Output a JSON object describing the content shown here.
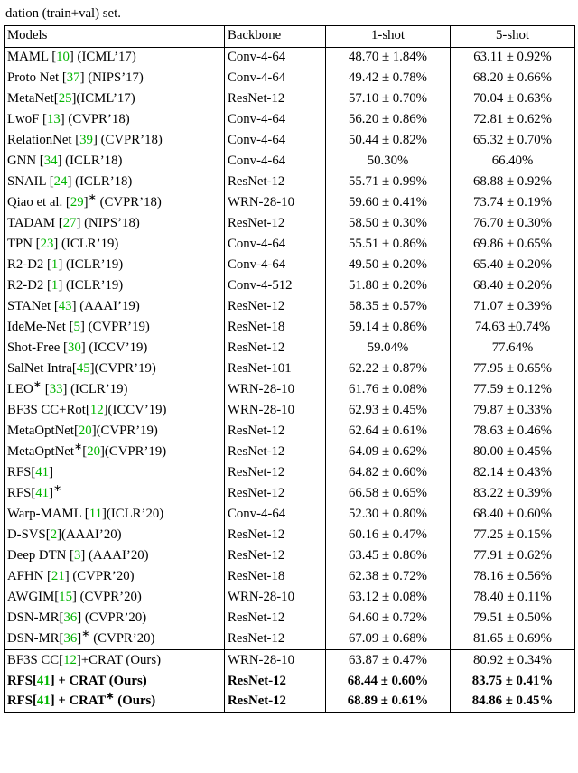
{
  "caption": "dation (train+val) set.",
  "headers": {
    "c1": "Models",
    "c2": "Backbone",
    "c3": "1-shot",
    "c4": "5-shot"
  },
  "ref_color": "#00b400",
  "rows": [
    {
      "model_pre": "MAML [",
      "ref": "10",
      "model_post": "] (ICML’17)",
      "backbone": "Conv-4-64",
      "s1": "48.70 ± 1.84%",
      "s5": "63.11 ± 0.92%"
    },
    {
      "model_pre": "Proto Net [",
      "ref": "37",
      "model_post": "] (NIPS’17)",
      "backbone": "Conv-4-64",
      "s1": "49.42 ± 0.78%",
      "s5": "68.20 ± 0.66%"
    },
    {
      "model_pre": "MetaNet[",
      "ref": "25",
      "model_post": "](ICML’17)",
      "backbone": "ResNet-12",
      "s1": "57.10 ± 0.70%",
      "s5": "70.04 ± 0.63%"
    },
    {
      "model_pre": "LwoF [",
      "ref": "13",
      "model_post": "] (CVPR’18)",
      "backbone": "Conv-4-64",
      "s1": "56.20 ± 0.86%",
      "s5": "72.81 ± 0.62%"
    },
    {
      "model_pre": "RelationNet [",
      "ref": "39",
      "model_post": "] (CVPR’18)",
      "backbone": "Conv-4-64",
      "s1": "50.44 ± 0.82%",
      "s5": "65.32 ± 0.70%"
    },
    {
      "model_pre": "GNN [",
      "ref": "34",
      "model_post": "] (ICLR’18)",
      "backbone": "Conv-4-64",
      "s1": "50.30%",
      "s5": "66.40%"
    },
    {
      "model_pre": "SNAIL [",
      "ref": "24",
      "model_post": "] (ICLR’18)",
      "backbone": "ResNet-12",
      "s1": "55.71 ± 0.99%",
      "s5": "68.88 ± 0.92%"
    },
    {
      "model_pre": "Qiao et al. [",
      "ref": "29",
      "model_post": "]",
      "suffix": " (CVPR’18)",
      "star": true,
      "backbone": "WRN-28-10",
      "s1": "59.60 ± 0.41%",
      "s5": "73.74 ± 0.19%"
    },
    {
      "model_pre": "TADAM [",
      "ref": "27",
      "model_post": "] (NIPS’18)",
      "backbone": "ResNet-12",
      "s1": "58.50 ± 0.30%",
      "s5": "76.70 ± 0.30%"
    },
    {
      "model_pre": "TPN [",
      "ref": "23",
      "model_post": "] (ICLR’19)",
      "backbone": "Conv-4-64",
      "s1": "55.51 ± 0.86%",
      "s5": "69.86 ± 0.65%"
    },
    {
      "model_pre": "R2-D2 [",
      "ref": "1",
      "model_post": "] (ICLR’19)",
      "backbone": "Conv-4-64",
      "s1": "49.50 ± 0.20%",
      "s5": "65.40 ± 0.20%"
    },
    {
      "model_pre": "R2-D2 [",
      "ref": "1",
      "model_post": "] (ICLR’19)",
      "backbone": "Conv-4-512",
      "s1": "51.80 ± 0.20%",
      "s5": "68.40 ± 0.20%"
    },
    {
      "model_pre": "STANet [",
      "ref": "43",
      "model_post": "] (AAAI’19)",
      "backbone": "ResNet-12",
      "s1": "58.35 ± 0.57%",
      "s5": "71.07 ± 0.39%"
    },
    {
      "model_pre": "IdeMe-Net [",
      "ref": "5",
      "model_post": "] (CVPR’19)",
      "backbone": "ResNet-18",
      "s1": "59.14 ± 0.86%",
      "s5": " 74.63 ±0.74%"
    },
    {
      "model_pre": "Shot-Free [",
      "ref": "30",
      "model_post": "] (ICCV’19)",
      "backbone": "ResNet-12",
      "s1": "59.04%",
      "s5": "77.64%"
    },
    {
      "model_pre": "SalNet Intra[",
      "ref": "45",
      "model_post": "](CVPR’19)",
      "backbone": "ResNet-101",
      "s1": "62.22 ± 0.87%",
      "s5": "77.95 ± 0.65%"
    },
    {
      "model_pre": "LEO",
      "ref": "33",
      "model_post": "] (ICLR’19)",
      "prestar": true,
      "preopen": " [",
      "backbone": "WRN-28-10",
      "s1": "61.76 ± 0.08%",
      "s5": "77.59 ± 0.12%"
    },
    {
      "model_pre": "BF3S CC+Rot[",
      "ref": "12",
      "model_post": "](ICCV’19)",
      "backbone": "WRN-28-10",
      "s1": "62.93 ± 0.45%",
      "s5": "79.87 ± 0.33%"
    },
    {
      "model_pre": "MetaOptNet[",
      "ref": "20",
      "model_post": "](CVPR’19)",
      "backbone": "ResNet-12",
      "s1": "62.64 ± 0.61%",
      "s5": "78.63 ± 0.46%"
    },
    {
      "model_pre": "MetaOptNet",
      "ref": "20",
      "model_post": "](CVPR’19)",
      "prestar": true,
      "preopen": "[",
      "backbone": "ResNet-12",
      "s1": "64.09 ± 0.62%",
      "s5": "80.00 ± 0.45%"
    },
    {
      "model_pre": "RFS[",
      "ref": "41",
      "model_post": "]",
      "backbone": "ResNet-12",
      "s1": "64.82 ± 0.60%",
      "s5": "82.14 ± 0.43%"
    },
    {
      "model_pre": "RFS[",
      "ref": "41",
      "model_post": "]",
      "star": true,
      "suffix": "",
      "backbone": "ResNet-12",
      "s1": "66.58 ± 0.65%",
      "s5": "83.22 ± 0.39%"
    },
    {
      "model_pre": "Warp-MAML [",
      "ref": "11",
      "model_post": "](ICLR’20)",
      "backbone": "Conv-4-64",
      "s1": "52.30 ± 0.80%",
      "s5": "68.40 ± 0.60%"
    },
    {
      "model_pre": "D-SVS[",
      "ref": "2",
      "model_post": "](AAAI’20)",
      "backbone": "ResNet-12",
      "s1": "60.16 ± 0.47%",
      "s5": "77.25 ± 0.15%"
    },
    {
      "model_pre": "Deep DTN [",
      "ref": "3",
      "model_post": "] (AAAI’20)",
      "backbone": "ResNet-12",
      "s1": "63.45 ± 0.86%",
      "s5": " 77.91 ± 0.62%"
    },
    {
      "model_pre": "AFHN [",
      "ref": "21",
      "model_post": "] (CVPR’20)",
      "backbone": "ResNet-18",
      "s1": "62.38 ± 0.72%",
      "s5": "78.16 ± 0.56%"
    },
    {
      "model_pre": "AWGIM[",
      "ref": "15",
      "model_post": "] (CVPR’20)",
      "backbone": "WRN-28-10",
      "s1": "63.12 ± 0.08%",
      "s5": "78.40 ± 0.11%"
    },
    {
      "model_pre": "DSN-MR[",
      "ref": "36",
      "model_post": "] (CVPR’20)",
      "backbone": "ResNet-12",
      "s1": "64.60 ± 0.72%",
      "s5": "79.51 ± 0.50%"
    },
    {
      "model_pre": "DSN-MR[",
      "ref": "36",
      "model_post": "]",
      "star": true,
      "suffix": " (CVPR’20)",
      "backbone": "ResNet-12",
      "s1": "67.09 ± 0.68%",
      "s5": "81.65 ± 0.69%"
    }
  ],
  "ours": [
    {
      "model_pre": "BF3S CC[",
      "ref": "12",
      "model_post": "]+CRAT (Ours)",
      "backbone": "WRN-28-10",
      "s1": "63.87 ± 0.47%",
      "s5": "80.92 ± 0.34%",
      "bold": false
    },
    {
      "model_pre": "RFS[",
      "ref": "41",
      "model_post": "] + CRAT (Ours)",
      "backbone": "ResNet-12",
      "s1": "68.44 ± 0.60%",
      "s5": "83.75 ± 0.41%",
      "bold": true
    },
    {
      "model_pre": "RFS[",
      "ref": "41",
      "model_post": "] + CRAT",
      "star": true,
      "suffix": " (Ours)",
      "backbone": "ResNet-12",
      "s1": "68.89 ± 0.61%",
      "s5": "84.86 ± 0.45%",
      "bold": true
    }
  ]
}
